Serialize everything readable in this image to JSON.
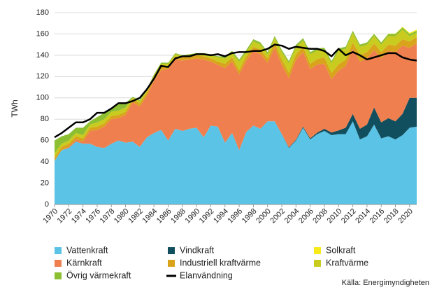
{
  "chart_data": {
    "type": "stacked_area",
    "y_label": "TWh",
    "source": "Källa: Energimyndigheten",
    "x": [
      1970,
      1971,
      1972,
      1973,
      1974,
      1975,
      1976,
      1977,
      1978,
      1979,
      1980,
      1981,
      1982,
      1983,
      1984,
      1985,
      1986,
      1987,
      1988,
      1989,
      1990,
      1991,
      1992,
      1993,
      1994,
      1995,
      1996,
      1997,
      1998,
      1999,
      2000,
      2001,
      2002,
      2003,
      2004,
      2005,
      2006,
      2007,
      2008,
      2009,
      2010,
      2011,
      2012,
      2013,
      2014,
      2015,
      2016,
      2017,
      2018,
      2019,
      2020,
      2021
    ],
    "xlim": [
      1970,
      2021
    ],
    "xticks": [
      1970,
      1972,
      1974,
      1976,
      1978,
      1980,
      1982,
      1984,
      1986,
      1988,
      1990,
      1992,
      1994,
      1996,
      1998,
      2000,
      2002,
      2004,
      2006,
      2008,
      2010,
      2012,
      2014,
      2016,
      2018,
      2020
    ],
    "ylim": [
      0,
      180
    ],
    "yticks": [
      0,
      20,
      40,
      60,
      80,
      100,
      120,
      140,
      160,
      180
    ],
    "grid": true,
    "series": [
      {
        "name": "Vattenkraft",
        "color": "#5bc3e6",
        "values": [
          41,
          51,
          53,
          59,
          57,
          57,
          54,
          53,
          57,
          60,
          58,
          59,
          54,
          63,
          67,
          70,
          60,
          71,
          69,
          71,
          72,
          63,
          74,
          73,
          58,
          67,
          51,
          68,
          74,
          71,
          78,
          78,
          66,
          53,
          60,
          72,
          61,
          66,
          69,
          65,
          66,
          66,
          78,
          61,
          64,
          75,
          62,
          64,
          61,
          65,
          72,
          73
        ]
      },
      {
        "name": "Vindkraft",
        "color": "#124f5e",
        "values": [
          0,
          0,
          0,
          0,
          0,
          0,
          0,
          0,
          0,
          0,
          0,
          0,
          0,
          0,
          0,
          0,
          0,
          0,
          0,
          0,
          0,
          0,
          0,
          0,
          0,
          0,
          0,
          0,
          0,
          0,
          0,
          0,
          0,
          0.5,
          0.8,
          1,
          1,
          1.4,
          2,
          2.5,
          3.5,
          6,
          7,
          10,
          11,
          16,
          15,
          17,
          17,
          20,
          28,
          27
        ]
      },
      {
        "name": "Solkraft",
        "color": "#f7ea1a",
        "values": [
          0,
          0,
          0,
          0,
          0,
          0,
          0,
          0,
          0,
          0,
          0,
          0,
          0,
          0,
          0,
          0,
          0,
          0,
          0,
          0,
          0,
          0,
          0,
          0,
          0,
          0,
          0,
          0,
          0,
          0,
          0,
          0,
          0,
          0,
          0,
          0,
          0,
          0,
          0,
          0,
          0,
          0,
          0,
          0,
          0.1,
          0.1,
          0.1,
          0.2,
          0.4,
          0.7,
          1,
          1.1
        ]
      },
      {
        "name": "Kärnkraft",
        "color": "#ef7f4f",
        "values": [
          0,
          0,
          1,
          2,
          2,
          12,
          16,
          20,
          23,
          21,
          26,
          37,
          38,
          39,
          49,
          56,
          67,
          65,
          66,
          65,
          65,
          73,
          60,
          58,
          70,
          67,
          71,
          67,
          70,
          70,
          55,
          69,
          65,
          65,
          75,
          70,
          65,
          64,
          61,
          50,
          56,
          58,
          61,
          63,
          62,
          54,
          60,
          63,
          65,
          64,
          47,
          51
        ]
      },
      {
        "name": "Industriell kraftvärme",
        "color": "#d9a41c",
        "values": [
          3,
          3,
          3,
          3,
          3,
          3,
          3,
          3,
          3,
          3,
          3,
          3,
          3,
          3,
          3,
          3,
          3,
          3,
          3,
          3,
          3,
          3,
          3,
          3,
          4,
          4,
          4,
          4,
          4,
          4,
          4,
          5,
          5,
          5,
          5,
          5,
          5,
          5,
          6,
          6,
          6,
          6,
          6,
          6,
          6,
          6,
          6,
          6,
          6,
          6,
          6,
          6
        ]
      },
      {
        "name": "Kraftvärme",
        "color": "#c9cc1e",
        "values": [
          4,
          3,
          3,
          3,
          3,
          3,
          4,
          4,
          4,
          4,
          4,
          1,
          2,
          2,
          2,
          3,
          2,
          2,
          1,
          1,
          1,
          2,
          3,
          4,
          5,
          4,
          8,
          4,
          5,
          5,
          4,
          4,
          7,
          9,
          7,
          6,
          9,
          8,
          7,
          9,
          13,
          10,
          9,
          8,
          7,
          7,
          7,
          8,
          9,
          9,
          5,
          4
        ]
      },
      {
        "name": "Övrig värmekraft",
        "color": "#8dbf33",
        "values": [
          12,
          7,
          6,
          5,
          7,
          3,
          5,
          6,
          3,
          6,
          4,
          1,
          1,
          1,
          1,
          1,
          1,
          1,
          1,
          1,
          1,
          1,
          1,
          1,
          2,
          2,
          2,
          2,
          2,
          2,
          2,
          2,
          2,
          2,
          2,
          2,
          2,
          2,
          2,
          2,
          2,
          2,
          2,
          2,
          2,
          2,
          2,
          2,
          2,
          2,
          2,
          2
        ]
      }
    ],
    "line_series": {
      "name": "Elanvändning",
      "color": "#000000",
      "values": [
        63,
        67,
        72,
        77,
        77,
        80,
        86,
        86,
        90,
        95,
        95,
        97,
        100,
        108,
        118,
        130,
        129,
        137,
        139,
        139,
        141,
        141,
        140,
        141,
        139,
        142,
        143,
        143,
        144,
        144,
        146,
        150,
        149,
        146,
        148,
        147,
        146,
        146,
        144,
        139,
        146,
        140,
        143,
        140,
        136,
        138,
        140,
        142,
        142,
        138,
        136,
        135
      ]
    }
  }
}
